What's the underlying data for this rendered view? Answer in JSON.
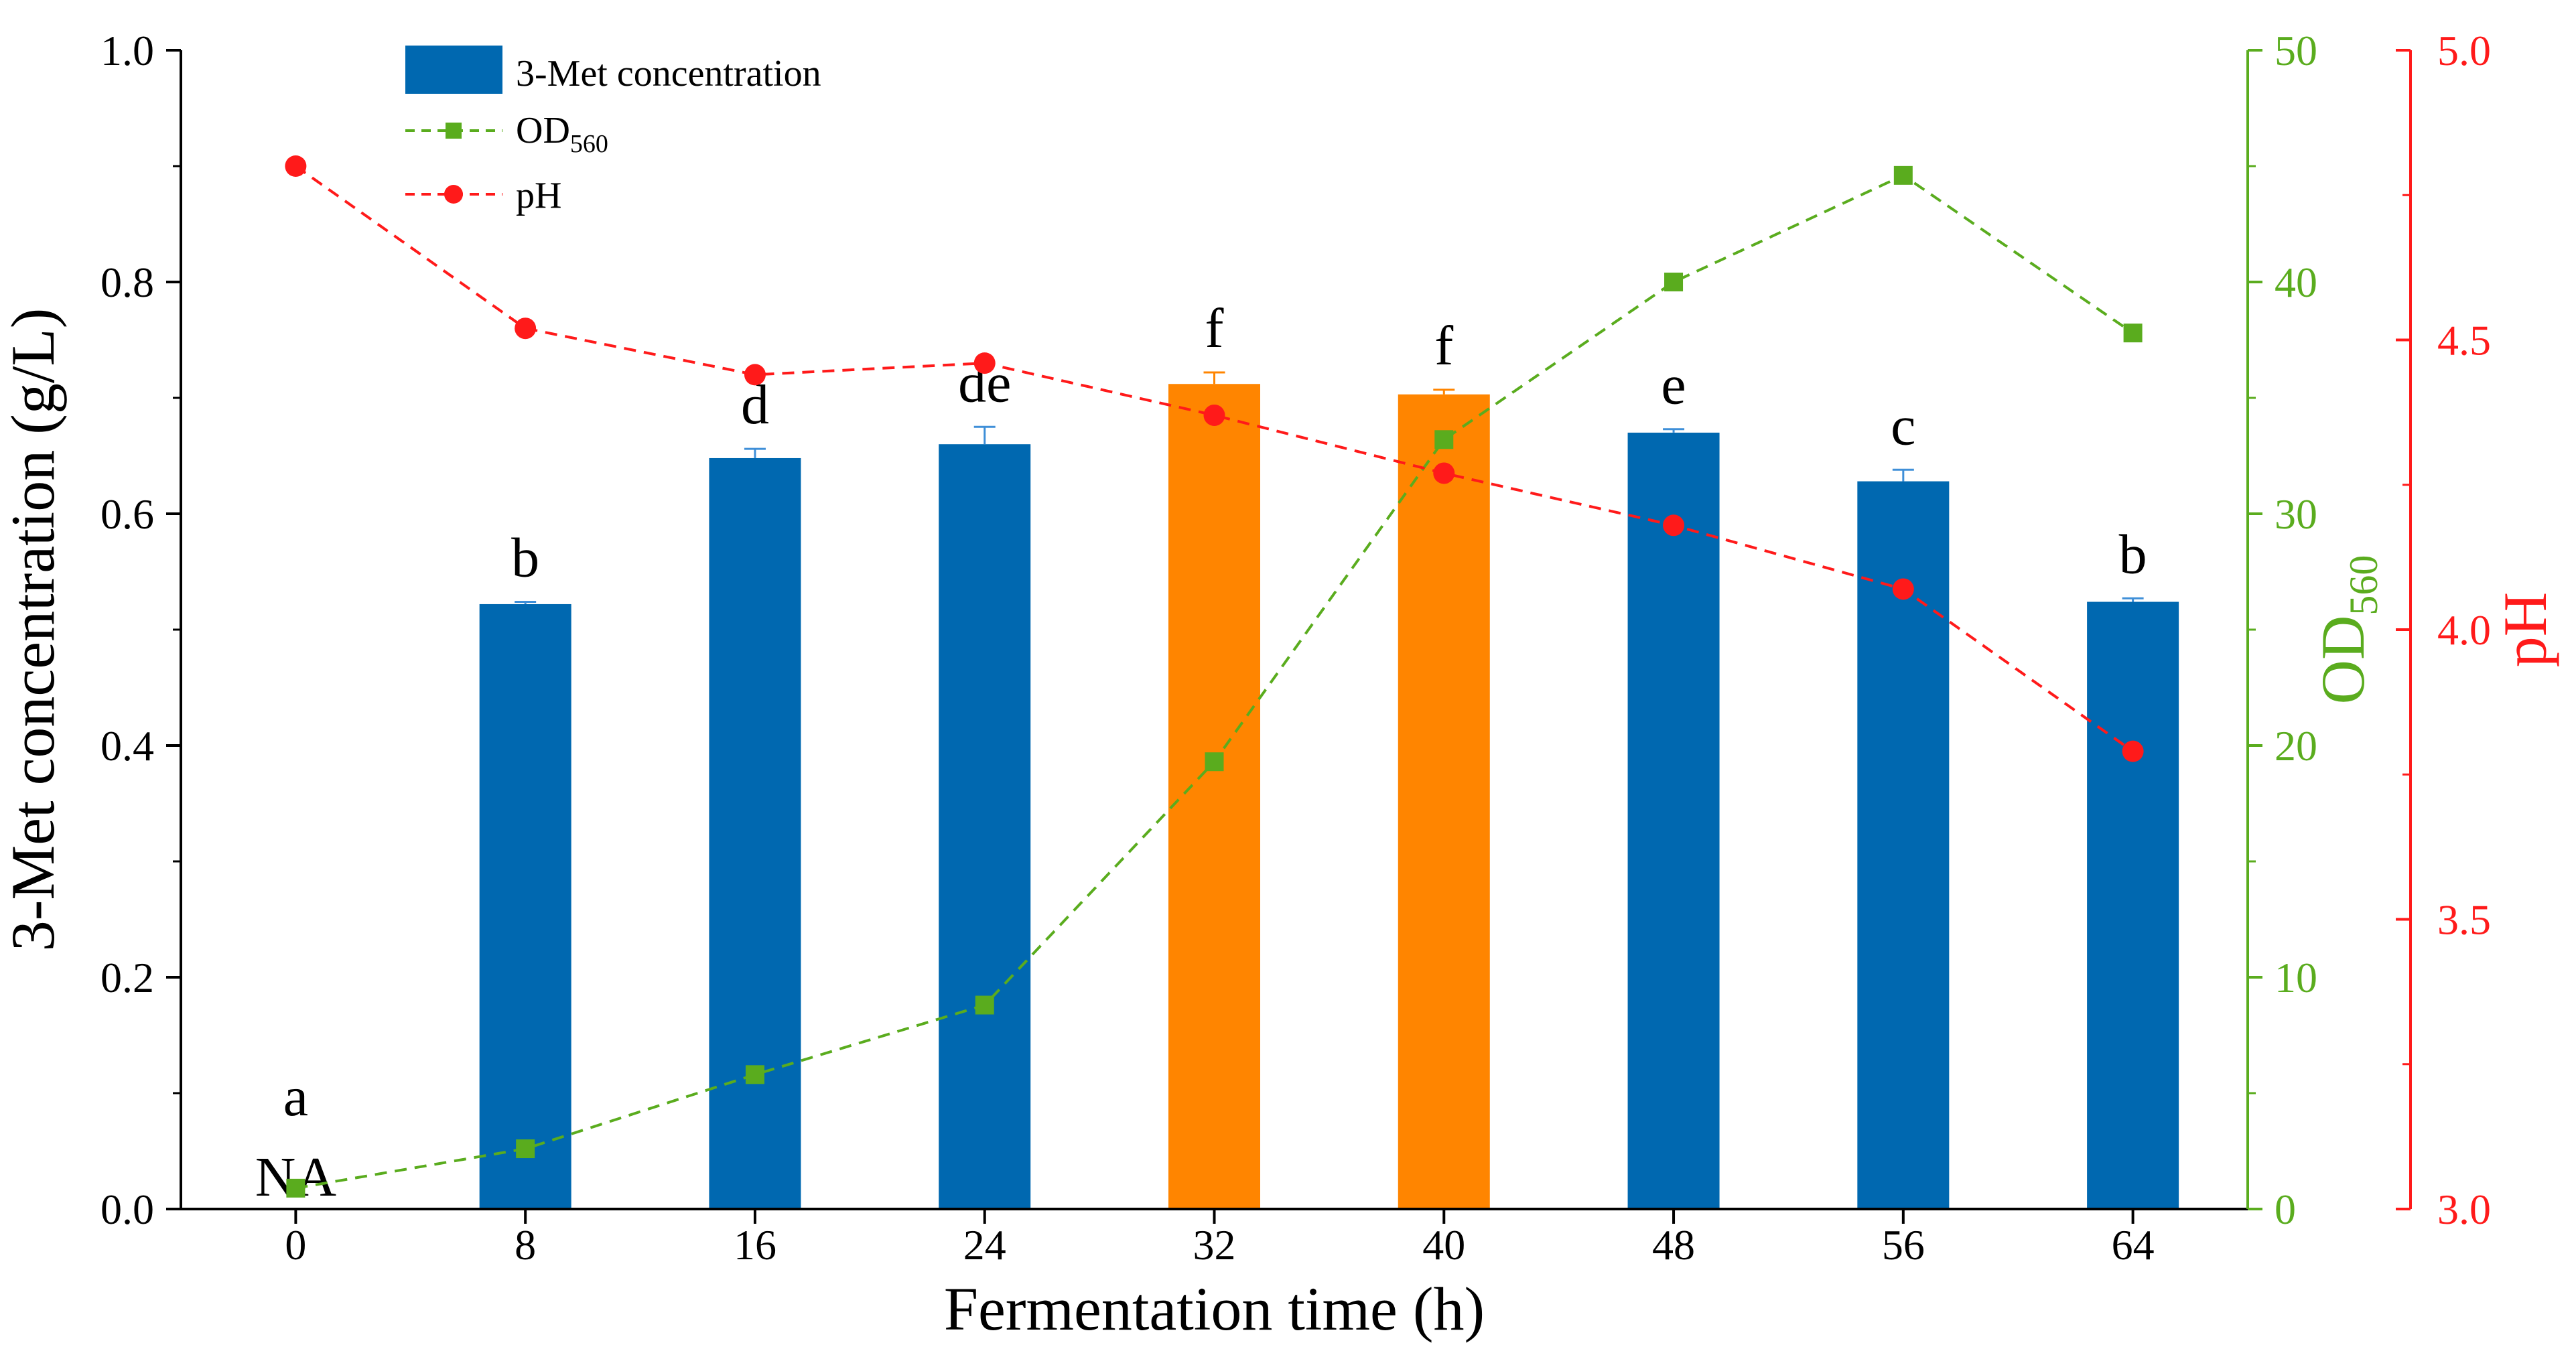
{
  "chart_data": {
    "type": "bar",
    "xlabel": "Fermentation time (h)",
    "ylabel": "3-Met concentration (g/L)",
    "categories": [
      "0",
      "8",
      "16",
      "24",
      "32",
      "40",
      "48",
      "56",
      "64"
    ],
    "ylim": [
      0,
      1.0
    ],
    "yticks": [
      "0.0",
      "0.2",
      "0.4",
      "0.6",
      "0.8",
      "1.0"
    ],
    "ytick_values": [
      0,
      0.2,
      0.4,
      0.6,
      0.8,
      1.0
    ],
    "y2": {
      "label_main": "OD",
      "label_sub": "560",
      "ylim": [
        0,
        50
      ],
      "ticks": [
        "0",
        "10",
        "20",
        "30",
        "40",
        "50"
      ],
      "tick_values": [
        0,
        10,
        20,
        30,
        40,
        50
      ],
      "color": "#5aac1e"
    },
    "y3": {
      "label": "pH",
      "ylim": [
        3.0,
        5.0
      ],
      "ticks": [
        "3.0",
        "3.5",
        "4.0",
        "4.5",
        "5.0"
      ],
      "tick_values": [
        3.0,
        3.5,
        4.0,
        4.5,
        5.0
      ],
      "color": "#ff1a1a"
    },
    "bars": {
      "name": "3-Met concentration",
      "values": [
        0,
        0.522,
        0.648,
        0.66,
        0.712,
        0.703,
        0.67,
        0.628,
        0.524
      ],
      "errors": [
        0,
        0.002,
        0.008,
        0.015,
        0.01,
        0.004,
        0.003,
        0.01,
        0.003
      ],
      "colors": [
        "#0068b0",
        "#0068b0",
        "#0068b0",
        "#0068b0",
        "#ff8500",
        "#ff8500",
        "#0068b0",
        "#0068b0",
        "#0068b0"
      ],
      "labels": [
        "a",
        "b",
        "d",
        "de",
        "f",
        "f",
        "e",
        "c",
        "b"
      ],
      "na_label": "NA"
    },
    "series": [
      {
        "name": "OD",
        "name_sub": "560",
        "axis": "y2",
        "values": [
          0.9,
          2.6,
          5.8,
          8.8,
          19.3,
          33.2,
          40.0,
          44.6,
          37.8
        ],
        "color": "#5aac1e",
        "marker": "square"
      },
      {
        "name": "pH",
        "axis": "y3",
        "values": [
          4.8,
          4.52,
          4.44,
          4.46,
          4.37,
          4.27,
          4.18,
          4.07,
          3.79
        ],
        "color": "#ff1a1a",
        "marker": "circle"
      }
    ],
    "legend_position": "top-left"
  }
}
